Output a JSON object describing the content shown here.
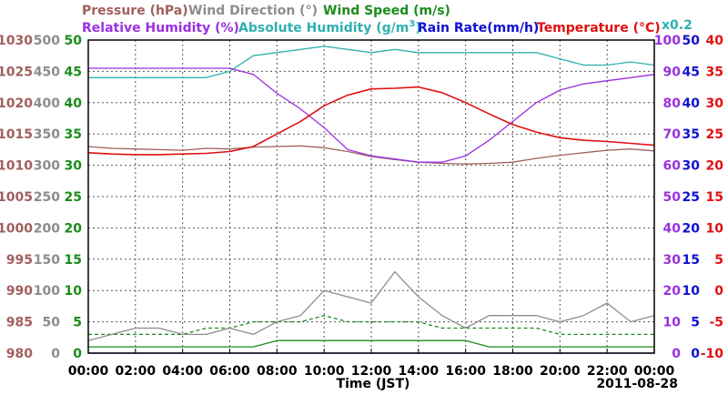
{
  "colors": {
    "pressure": "#a0605e",
    "wind_direction": "#8c8c8c",
    "wind_speed": "#1a8c1a",
    "relative_humidity": "#9a30e0",
    "absolute_humidity": "#30b0b0",
    "rain_rate": "#1010d0",
    "temperature": "#e01010",
    "grid": "#555555"
  },
  "chart_data": {
    "type": "line",
    "title": "",
    "date": "2011-08-28",
    "xlabel": "Time (JST)",
    "x_ticks": [
      "00:00",
      "02:00",
      "04:00",
      "06:00",
      "08:00",
      "10:00",
      "12:00",
      "14:00",
      "16:00",
      "18:00",
      "20:00",
      "22:00",
      "00:00"
    ],
    "xlim": [
      "00:00",
      "24:00"
    ],
    "grid": true,
    "legend_row1": [
      {
        "text": "Pressure (hPa)",
        "series": "pressure"
      },
      {
        "text": "Wind Direction (°)",
        "series": "wind_direction"
      },
      {
        "text": "Wind Speed (m/s)",
        "series": "wind_speed"
      }
    ],
    "legend_row2": [
      {
        "text": "Relative Humidity (%)",
        "series": "relative_humidity"
      },
      {
        "text": "Absolute Humidity (g/m",
        "sup": "3",
        "after": ")",
        "series": "absolute_humidity"
      },
      {
        "text": "Rain Rate(mm/h)",
        "series": "rain_rate"
      },
      {
        "text": "Temperature (°C)",
        "series": "temperature"
      }
    ],
    "abs_humidity_scale_note": "x0.2",
    "axes": {
      "pressure": {
        "ylim": [
          980,
          1030
        ],
        "ticks": [
          "1030",
          "1025",
          "1020",
          "1015",
          "1010",
          "1005",
          "1000",
          "995",
          "990",
          "985",
          "980"
        ]
      },
      "wind_direction": {
        "ylim": [
          0,
          500
        ],
        "ticks": [
          "500",
          "450",
          "400",
          "350",
          "300",
          "250",
          "200",
          "150",
          "100",
          "50",
          "0"
        ]
      },
      "wind_speed": {
        "ylim": [
          0,
          50
        ],
        "ticks": [
          "50",
          "45",
          "40",
          "35",
          "30",
          "25",
          "20",
          "15",
          "10",
          "5",
          "0"
        ]
      },
      "relative_humidity": {
        "ylim": [
          0,
          100
        ],
        "ticks": [
          "100",
          "90",
          "80",
          "70",
          "60",
          "50",
          "40",
          "30",
          "20",
          "10",
          "0"
        ]
      },
      "rain_rate": {
        "ylim": [
          0,
          50
        ],
        "ticks": [
          "50",
          "45",
          "40",
          "35",
          "30",
          "25",
          "20",
          "15",
          "10",
          "5",
          "0"
        ]
      },
      "temperature": {
        "ylim": [
          -10,
          40
        ],
        "ticks": [
          "40",
          "35",
          "30",
          "25",
          "20",
          "15",
          "10",
          "5",
          "0",
          "-5",
          "-10"
        ]
      }
    },
    "hours": [
      0,
      1,
      2,
      3,
      4,
      5,
      6,
      7,
      8,
      9,
      10,
      11,
      12,
      13,
      14,
      15,
      16,
      17,
      18,
      19,
      20,
      21,
      22,
      23,
      24
    ],
    "series": [
      {
        "name": "Pressure",
        "key": "pressure",
        "axis": "pressure",
        "values": [
          1013.0,
          1012.7,
          1012.6,
          1012.5,
          1012.4,
          1012.7,
          1012.6,
          1012.9,
          1013.0,
          1013.1,
          1012.8,
          1012.2,
          1011.4,
          1010.9,
          1010.5,
          1010.3,
          1010.2,
          1010.3,
          1010.5,
          1011.1,
          1011.6,
          1012.0,
          1012.4,
          1012.6,
          1012.3
        ]
      },
      {
        "name": "Temperature",
        "key": "temperature",
        "axis": "temperature",
        "values": [
          22.0,
          21.8,
          21.7,
          21.7,
          21.8,
          21.9,
          22.2,
          23.0,
          25.0,
          27.0,
          29.5,
          31.2,
          32.2,
          32.3,
          32.5,
          31.6,
          30.0,
          28.2,
          26.5,
          25.3,
          24.4,
          24.0,
          23.8,
          23.5,
          23.2
        ]
      },
      {
        "name": "Relative Humidity",
        "key": "relative_humidity",
        "axis": "relative_humidity",
        "values": [
          91,
          91,
          91,
          91,
          91,
          91,
          91,
          89,
          83,
          78,
          72,
          65,
          63,
          62,
          61,
          61,
          63,
          68,
          74,
          80,
          84,
          86,
          87,
          88,
          89
        ]
      },
      {
        "name": "Absolute Humidity",
        "key": "absolute_humidity",
        "axis": "wind_speed",
        "values": [
          44.0,
          44.0,
          44.0,
          44.0,
          44.0,
          44.0,
          45.0,
          47.5,
          48.0,
          48.5,
          49.0,
          48.5,
          48.0,
          48.5,
          48.0,
          48.0,
          48.0,
          48.0,
          48.0,
          48.0,
          47.0,
          46.0,
          46.0,
          46.5,
          46.0
        ]
      },
      {
        "name": "Wind Direction",
        "key": "wind_direction",
        "axis": "wind_direction",
        "values": [
          20,
          30,
          40,
          40,
          30,
          30,
          40,
          30,
          50,
          60,
          100,
          90,
          80,
          130,
          90,
          60,
          40,
          60,
          60,
          60,
          50,
          60,
          80,
          50,
          60
        ]
      },
      {
        "name": "Wind Speed",
        "key": "wind_speed",
        "axis": "wind_speed",
        "values": [
          3,
          3,
          3,
          3,
          3,
          4,
          4,
          5,
          5,
          5,
          6,
          5,
          5,
          5,
          5,
          4,
          4,
          4,
          4,
          4,
          3,
          3,
          3,
          3,
          3
        ]
      },
      {
        "name": "Wind Speed (low)",
        "key": "wind_speed",
        "axis": "wind_speed",
        "values": [
          1,
          1,
          1,
          1,
          1,
          1,
          1,
          1,
          2,
          2,
          2,
          2,
          2,
          2,
          2,
          2,
          2,
          1,
          1,
          1,
          1,
          1,
          1,
          1,
          1
        ]
      },
      {
        "name": "Rain Rate",
        "key": "rain_rate",
        "axis": "rain_rate",
        "values": [
          0,
          0,
          0,
          0,
          0,
          0,
          0,
          0,
          0,
          0,
          0,
          0,
          0,
          0,
          0,
          0,
          0,
          0,
          0,
          0,
          0,
          0,
          0,
          0,
          0
        ]
      }
    ]
  }
}
